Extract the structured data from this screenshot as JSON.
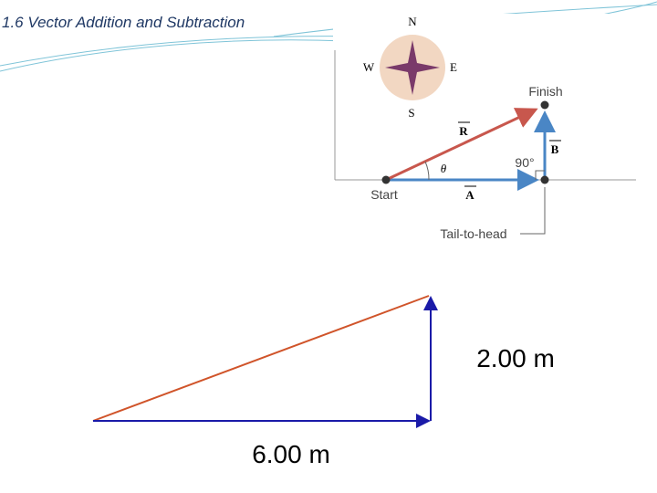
{
  "header": {
    "title": "1.6 Vector Addition and Subtraction"
  },
  "figure": {
    "compass": {
      "north": "N",
      "west": "W",
      "east": "E",
      "south": "S"
    },
    "finish": "Finish",
    "start": "Start",
    "vector_r": "R",
    "vector_b": "B",
    "vector_a": "A",
    "angle": "θ",
    "right_angle": "90°",
    "method": "Tail-to-head"
  },
  "sketch": {
    "vertical_label": "2.00 m",
    "horizontal_label": "6.00 m"
  }
}
